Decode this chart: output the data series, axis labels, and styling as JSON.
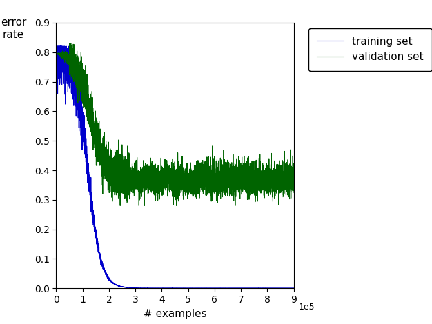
{
  "title": "",
  "xlabel": "# examples",
  "ylabel": "error\nrate",
  "xlim": [
    0,
    900000
  ],
  "ylim": [
    0,
    0.9
  ],
  "xticks": [
    0,
    100000,
    200000,
    300000,
    400000,
    500000,
    600000,
    700000,
    800000,
    900000
  ],
  "xtick_labels": [
    "0",
    "1",
    "2",
    "3",
    "4",
    "5",
    "6",
    "7",
    "8",
    "9"
  ],
  "yticks": [
    0.0,
    0.1,
    0.2,
    0.3,
    0.4,
    0.5,
    0.6,
    0.7,
    0.8,
    0.9
  ],
  "train_color": "#0000cc",
  "val_color": "#006400",
  "train_label": "training set",
  "val_label": "validation set",
  "n_points": 5000,
  "train_initial": 0.8,
  "train_final": 0.001,
  "val_plateau": 0.37,
  "val_noise": 0.028,
  "background_color": "#ffffff",
  "legend_fontsize": 11,
  "axis_fontsize": 11,
  "tick_fontsize": 10,
  "figsize": [
    6.26,
    4.7
  ],
  "dpi": 100
}
